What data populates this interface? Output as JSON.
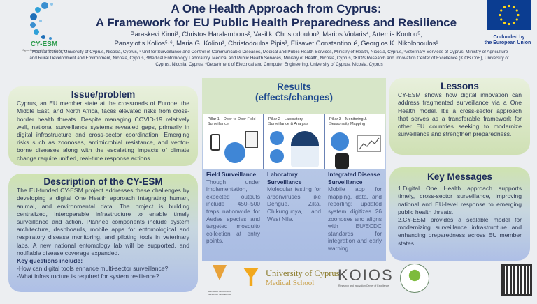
{
  "header": {
    "logo_text": "CY-ESM",
    "logo_subtitle": "Cyprus Empowered Surveillance Mechanism",
    "title_line1": "A One Health Approach from Cyprus:",
    "title_line2": "A Framework for EU Public Health Preparedness and Resilience",
    "authors_line1": "Paraskevi Kinni¹, Christos Haralambous², Vasiliki Christodoulou³, Marios Violaris⁴, Artemis Kontou⁵,",
    "authors_line2": "Panayiotis Kolios⁵˒⁶, Maria G. Koliou¹, Christodoulos Pipis³, Elisavet Constantinou², Georgios K. Nikolopoulos¹",
    "affiliations": "¹Medical School, University of Cyprus, Nicosia, Cyprus, ² Unit for Surveillance and Control of Communicable Diseases, Medical and Public Health Services, Ministry of Health, Nicosia, Cyprus, ³Veterinary Services of Cyprus, Ministry of Agriculture and Rural Development and Environment, Nicosia, Cyprus, ⁴Medical Entomology Laboratory, Medical and Public Health Services, Ministry of Health, Nicosia, Cyprus, ⁵KIOS Research and Innovation Center of Excellence (KIOS CoE), University of Cyprus, Nicosia, Cyprus, ⁶Department of Electrical and Computer Engineering, University of Cyprus, Nicosia, Cyprus",
    "eu_label_line1": "Co-funded by",
    "eu_label_line2": "the European Union"
  },
  "issue": {
    "title": "Issue/problem",
    "text": "Cyprus, an EU member state at the crossroads of Europe, the Middle East, and North Africa, faces elevated risks from cross-border health threats. Despite managing COVID-19 relatively well, national surveillance systems revealed gaps, primarily in digital infrastructure and cross-sector coordination. Emerging risks such as zoonoses, antimicrobial resistance, and vector-borne diseases along with the escalating impacts of climate change require unified, real-time response actions."
  },
  "description": {
    "title": "Description of the CY-ESM",
    "text": "The EU-funded CY-ESM project addresses these challenges by developing a digital One Health approach integrating human, animal, and environmental data. The project is building centralized, interoperable infrastructure to enable timely surveillance and action. Planned components include system architecture, dashboards, mobile apps for entomological and respiratory disease monitoring, and piloting tools in veterinary labs. A new national entomology lab will be supported, and notifiable disease coverage expanded.",
    "key_questions_label": "Key questions include:",
    "questions": [
      "-How can digital tools enhance multi-sector surveillance?",
      "-What infrastructure is required for system resilience?"
    ]
  },
  "results": {
    "title_line1": "Results",
    "title_line2": "(effects/changes)",
    "pillars": [
      {
        "label": "Pillar 1 – Door-to-Door Field Surveillance",
        "heading": "Field Surveillance",
        "text": "Though under implementation, expected outputs include 450–500 traps nationwide for Aedes species and targeted mosquito collection at entry points."
      },
      {
        "label": "Pillar 2 – Laboratory Surveillance & Analysis",
        "heading": "Laboratory Surveillance",
        "text": "Molecular testing for arbonviruses like Dengue, Zika, Chikungunya, and West Nile."
      },
      {
        "label": "Pillar 3 – Monitoring & Seasonality Mapping",
        "heading": "Integrated Disease Surveillance",
        "text": "Mobile app for mapping, data, and reporting; updated system digitizes 26 zoonoses and aligns with EU/ECDC standards for integration and early warning."
      }
    ]
  },
  "lessons": {
    "title": "Lessons",
    "text": "CY-ESM shows how digital innovation can address fragmented surveillance via a One Health model. It’s a cross-sector approach that serves as a transferable framework for other EU countries seeking to modernize surveillance and strengthen preparedness."
  },
  "key_messages": {
    "title": "Key Messages",
    "items": [
      "1.Digital One Health approach supports timely, cross-sector surveillance, improving national and EU-level response to emerging public health threats.",
      "2.CY-ESM provides a scalable model for modernizing surveillance infrastructure and enhancing preparedness across EU member states."
    ]
  },
  "footer": {
    "moh_label": "REPUBLIC OF CYPRUS MINISTRY OF HEALTH",
    "ucy_line1": "University of Cyprus",
    "ucy_line2": "Medical School",
    "kios": "KOIOS",
    "kios_sub": "Research and Innovation Center of Excellence"
  },
  "colors": {
    "navy": "#1c2b5a",
    "green_box": "#d6e6c0",
    "blue_box": "#aebfe6",
    "eu_blue": "#0b3d91",
    "eu_star": "#ffd617"
  }
}
